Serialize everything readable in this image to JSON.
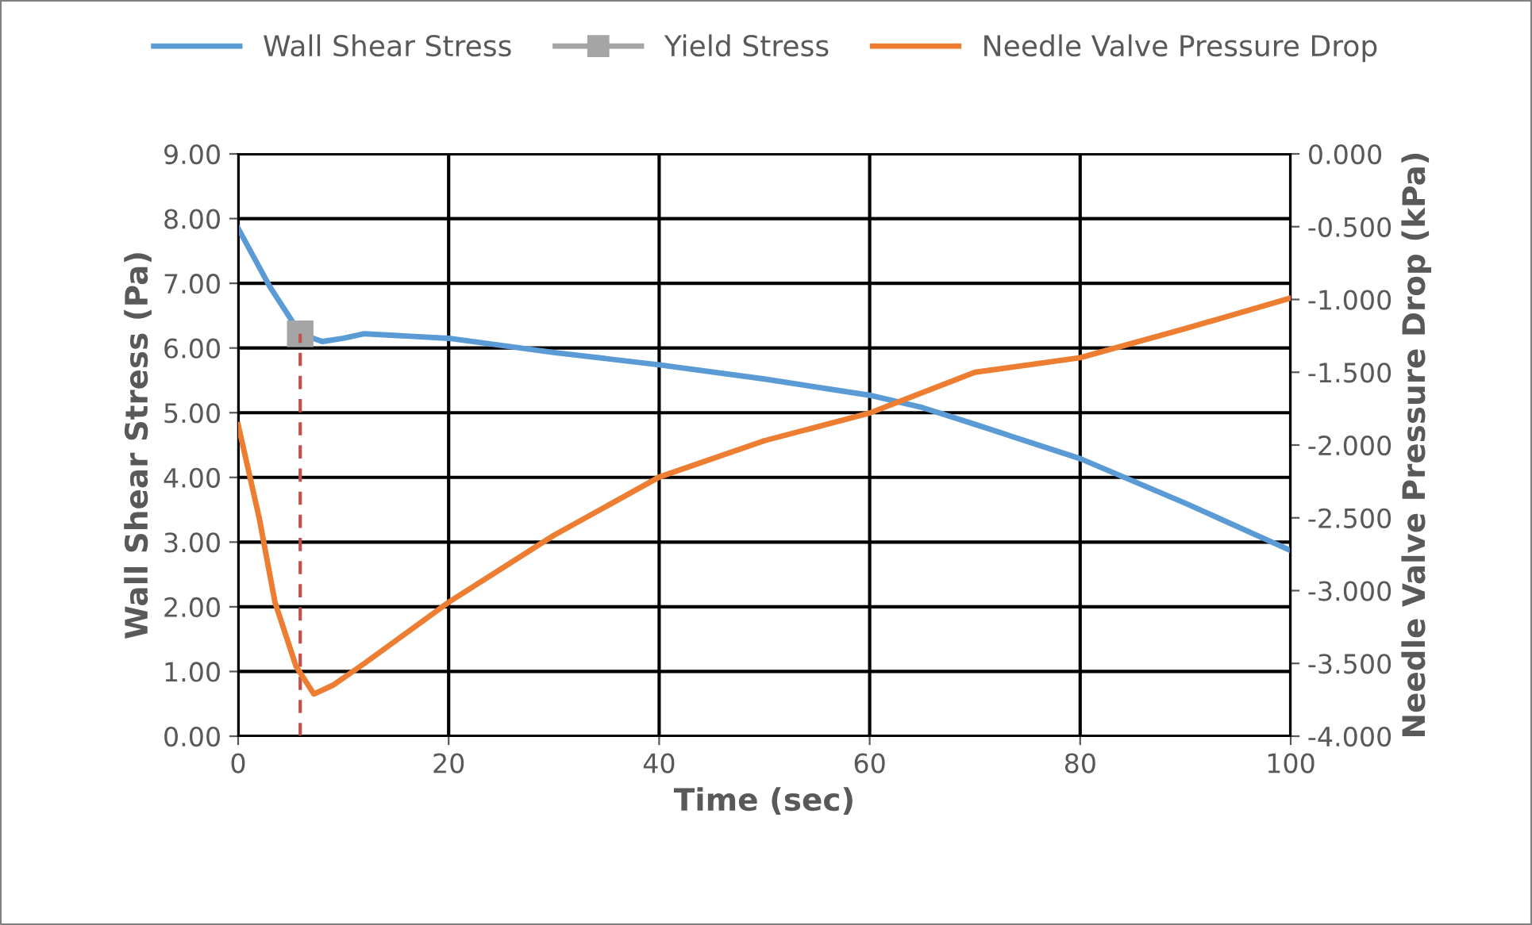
{
  "chart_data": {
    "type": "line",
    "xlabel": "Time (sec)",
    "ylabel": "Wall Shear Stress (Pa)",
    "y2label": "Needle Valve Pressure Drop (kPa)",
    "xlim": [
      0,
      100
    ],
    "xticks": [
      0,
      20,
      40,
      60,
      80,
      100
    ],
    "ylim": [
      0,
      9
    ],
    "yticks": [
      {
        "value": 0,
        "label": "0.00"
      },
      {
        "value": 1,
        "label": "1.00"
      },
      {
        "value": 2,
        "label": "2.00"
      },
      {
        "value": 3,
        "label": "3.00"
      },
      {
        "value": 4,
        "label": "4.00"
      },
      {
        "value": 5,
        "label": "5.00"
      },
      {
        "value": 6,
        "label": "6.00"
      },
      {
        "value": 7,
        "label": "7.00"
      },
      {
        "value": 8,
        "label": "8.00"
      },
      {
        "value": 9,
        "label": "9.00"
      }
    ],
    "y2lim": [
      -4,
      0
    ],
    "y2ticks": [
      {
        "value": -4,
        "label": "-4.000"
      },
      {
        "value": -3.5,
        "label": "-3.500"
      },
      {
        "value": -3,
        "label": "-3.000"
      },
      {
        "value": -2.5,
        "label": "-2.500"
      },
      {
        "value": -2,
        "label": "-2.000"
      },
      {
        "value": -1.5,
        "label": "-1.500"
      },
      {
        "value": -1,
        "label": "-1.000"
      },
      {
        "value": -0.5,
        "label": "-0.500"
      },
      {
        "value": 0,
        "label": "0.000"
      }
    ],
    "grid": true,
    "legend": "top",
    "series": [
      {
        "name": "Wall Shear Stress",
        "color": "#5b9bd5",
        "marker": "none",
        "x": [
          0,
          3,
          5.9,
          8,
          10,
          12,
          20,
          30,
          40,
          50,
          60,
          65,
          70,
          80,
          90,
          100
        ],
        "values": [
          7.85,
          6.95,
          6.22,
          6.1,
          6.15,
          6.22,
          6.15,
          5.93,
          5.74,
          5.52,
          5.27,
          5.08,
          4.82,
          4.29,
          3.6,
          2.87
        ]
      },
      {
        "name": "Yield Stress",
        "color": "#a5a5a5",
        "marker": "square",
        "x": [
          5.9
        ],
        "values": [
          6.22
        ]
      },
      {
        "name": "Needle Valve Pressure Drop",
        "color": "#ed7d31",
        "axis": "y2",
        "marker": "none",
        "x": [
          0,
          2,
          3.5,
          5.5,
          7.2,
          9,
          12,
          20,
          30,
          40,
          50,
          60,
          70,
          80,
          90,
          100
        ],
        "values": [
          -1.86,
          -2.5,
          -3.08,
          -3.52,
          -3.71,
          -3.65,
          -3.5,
          -3.08,
          -2.62,
          -2.22,
          -1.97,
          -1.78,
          -1.5,
          -1.4,
          -1.2,
          -0.99
        ]
      },
      {
        "color": "#c0504d",
        "line_style": "dashed",
        "marker": "none",
        "x": [
          5.9,
          5.9
        ],
        "values": [
          0,
          6.22
        ]
      }
    ]
  }
}
